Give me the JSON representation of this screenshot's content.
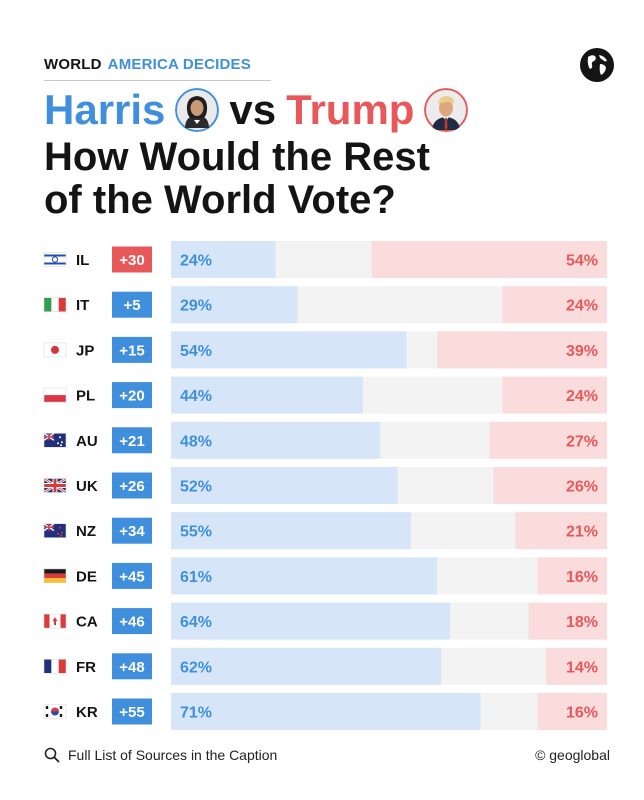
{
  "header": {
    "crumb_world": "WORLD",
    "crumb_section": "AMERICA DECIDES",
    "harris": "Harris",
    "vs": "vs",
    "trump": "Trump",
    "subtitle_line1": "How Would the Rest",
    "subtitle_line2": "of the World Vote?"
  },
  "footer": {
    "sources": "Full List of Sources in the Caption",
    "credit": "© geoglobal"
  },
  "colors": {
    "harris_blue": "#3f8fdd",
    "trump_red": "#e8585a",
    "harris_bar": "#d6e6f8",
    "trump_bar": "#fadcdd",
    "neutral_bar": "#f3f3f3"
  },
  "icons": [
    "globe-icon",
    "search-icon",
    "flag-icon"
  ],
  "chart_data": {
    "type": "bar",
    "categories": [
      "IL",
      "IT",
      "JP",
      "PL",
      "AU",
      "UK",
      "NZ",
      "DE",
      "CA",
      "FR",
      "KR"
    ],
    "margins": [
      "+30",
      "+5",
      "+15",
      "+20",
      "+21",
      "+26",
      "+34",
      "+45",
      "+46",
      "+48",
      "+55"
    ],
    "margin_leader": [
      "trump",
      "harris",
      "harris",
      "harris",
      "harris",
      "harris",
      "harris",
      "harris",
      "harris",
      "harris",
      "harris"
    ],
    "series": [
      {
        "name": "Harris",
        "values": [
          24,
          29,
          54,
          44,
          48,
          52,
          55,
          61,
          64,
          62,
          71
        ]
      },
      {
        "name": "Trump",
        "values": [
          54,
          24,
          39,
          24,
          27,
          26,
          21,
          16,
          18,
          14,
          16
        ]
      }
    ],
    "value_labels": {
      "harris": [
        "24%",
        "29%",
        "54%",
        "44%",
        "48%",
        "52%",
        "55%",
        "61%",
        "64%",
        "62%",
        "71%"
      ],
      "trump": [
        "54%",
        "24%",
        "39%",
        "24%",
        "27%",
        "26%",
        "21%",
        "16%",
        "18%",
        "14%",
        "16%"
      ]
    },
    "ylim": [
      0,
      100
    ],
    "orientation": "horizontal",
    "title": "",
    "xlabel": "",
    "ylabel": ""
  }
}
